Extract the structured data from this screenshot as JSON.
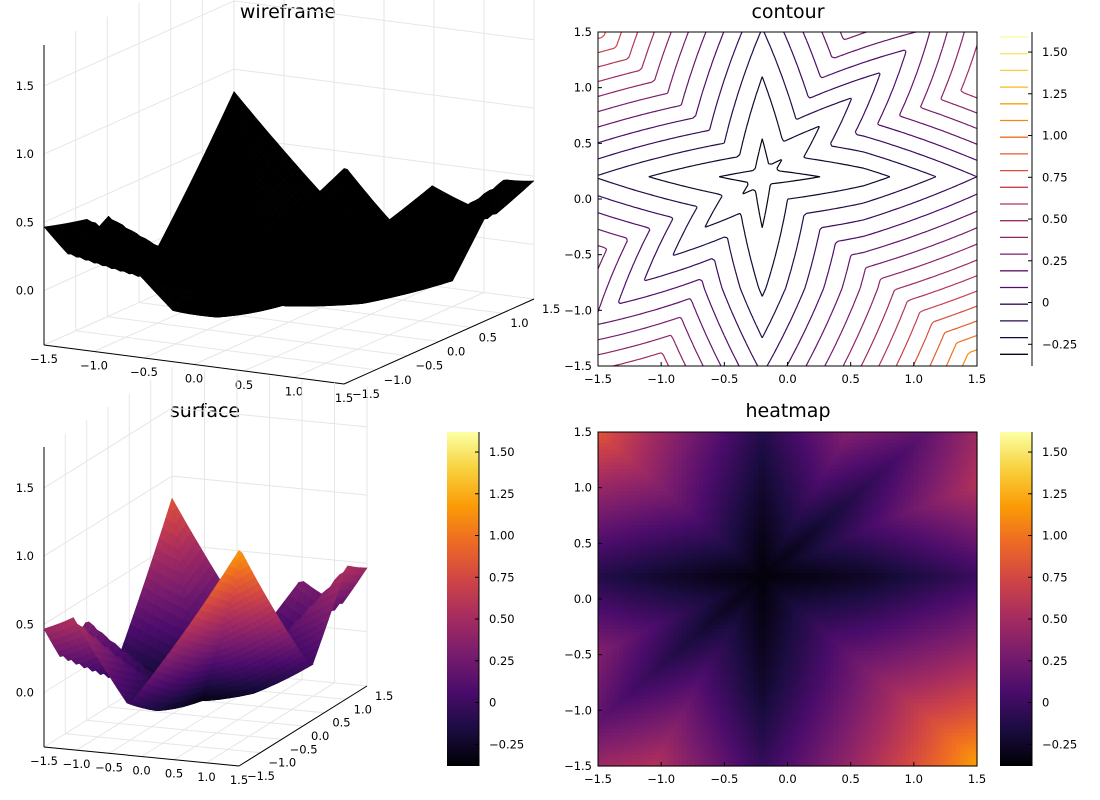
{
  "chart_data": [
    {
      "id": "wireframe",
      "type": "surface",
      "render": "wireframe",
      "title": "wireframe",
      "xlim": [
        -1.5,
        1.5
      ],
      "ylim": [
        -1.5,
        1.5
      ],
      "zlim": [
        -0.4,
        1.8
      ],
      "x_ticks": [
        -1.5,
        -1.0,
        -0.5,
        0.0,
        0.5,
        1.0,
        1.5
      ],
      "y_ticks": [
        -1.5,
        -1.0,
        -0.5,
        0.0,
        0.5,
        1.0,
        1.5
      ],
      "z_ticks": [
        0.0,
        0.5,
        1.0,
        1.5
      ],
      "line_color": "#000000",
      "grid": true
    },
    {
      "id": "contour",
      "type": "contour",
      "title": "contour",
      "xlim": [
        -1.5,
        1.5
      ],
      "ylim": [
        -1.5,
        1.5
      ],
      "x_ticks": [
        -1.5,
        -1.0,
        -0.5,
        0.0,
        0.5,
        1.0,
        1.5
      ],
      "y_ticks": [
        -1.5,
        -1.0,
        -0.5,
        0.0,
        0.5,
        1.0,
        1.5
      ],
      "levels": [
        -0.31,
        -0.21,
        -0.11,
        -0.01,
        0.09,
        0.19,
        0.29,
        0.39,
        0.49,
        0.59,
        0.69,
        0.79,
        0.89,
        0.99,
        1.09,
        1.19,
        1.29,
        1.39,
        1.49,
        1.59
      ],
      "colorbar_ticks": [
        -0.25,
        0,
        0.25,
        0.5,
        0.75,
        1.0,
        1.25,
        1.5
      ],
      "colorbar_labels": [
        "−0.25",
        "0",
        "0.25",
        "0.50",
        "0.75",
        "1.00",
        "1.25",
        "1.50"
      ],
      "colormap": "inferno",
      "grid": false
    },
    {
      "id": "surface",
      "type": "surface",
      "render": "filled",
      "title": "surface",
      "xlim": [
        -1.5,
        1.5
      ],
      "ylim": [
        -1.5,
        1.5
      ],
      "zlim": [
        -0.4,
        1.8
      ],
      "x_ticks": [
        -1.5,
        -1.0,
        -0.5,
        0.0,
        0.5,
        1.0,
        1.5
      ],
      "y_ticks": [
        -1.5,
        -1.0,
        -0.5,
        0.0,
        0.5,
        1.0,
        1.5
      ],
      "z_ticks": [
        0.0,
        0.5,
        1.0,
        1.5
      ],
      "colorbar_ticks": [
        -0.25,
        0,
        0.25,
        0.5,
        0.75,
        1.0,
        1.25,
        1.5
      ],
      "colorbar_labels": [
        "−0.25",
        "0",
        "0.25",
        "0.50",
        "0.75",
        "1.00",
        "1.25",
        "1.50"
      ],
      "colormap": "inferno",
      "grid": true
    },
    {
      "id": "heatmap",
      "type": "heatmap",
      "title": "heatmap",
      "xlim": [
        -1.5,
        1.5
      ],
      "ylim": [
        -1.5,
        1.5
      ],
      "x_ticks": [
        -1.5,
        -1.0,
        -0.5,
        0.0,
        0.5,
        1.0,
        1.5
      ],
      "y_ticks": [
        -1.5,
        -1.0,
        -0.5,
        0.0,
        0.5,
        1.0,
        1.5
      ],
      "colorbar_ticks": [
        -0.25,
        0,
        0.25,
        0.5,
        0.75,
        1.0,
        1.25,
        1.5
      ],
      "colorbar_labels": [
        "−0.25",
        "0",
        "0.25",
        "0.50",
        "0.75",
        "1.00",
        "1.25",
        "1.50"
      ],
      "colormap": "inferno",
      "grid": false
    }
  ],
  "function": {
    "clim": [
      -0.38,
      1.62
    ],
    "colormap_stops": [
      "#000004",
      "#1b0c41",
      "#4a0c6b",
      "#781c6d",
      "#a52c60",
      "#cf4446",
      "#ed6925",
      "#fb9b06",
      "#f7d13d",
      "#fcffa4"
    ],
    "tick_labels_1d": [
      "−1.5",
      "−1.0",
      "−0.5",
      "0.0",
      "0.5",
      "1.0",
      "1.5"
    ],
    "tick_labels_z": [
      "0.0",
      "0.5",
      "1.0",
      "1.5"
    ]
  }
}
